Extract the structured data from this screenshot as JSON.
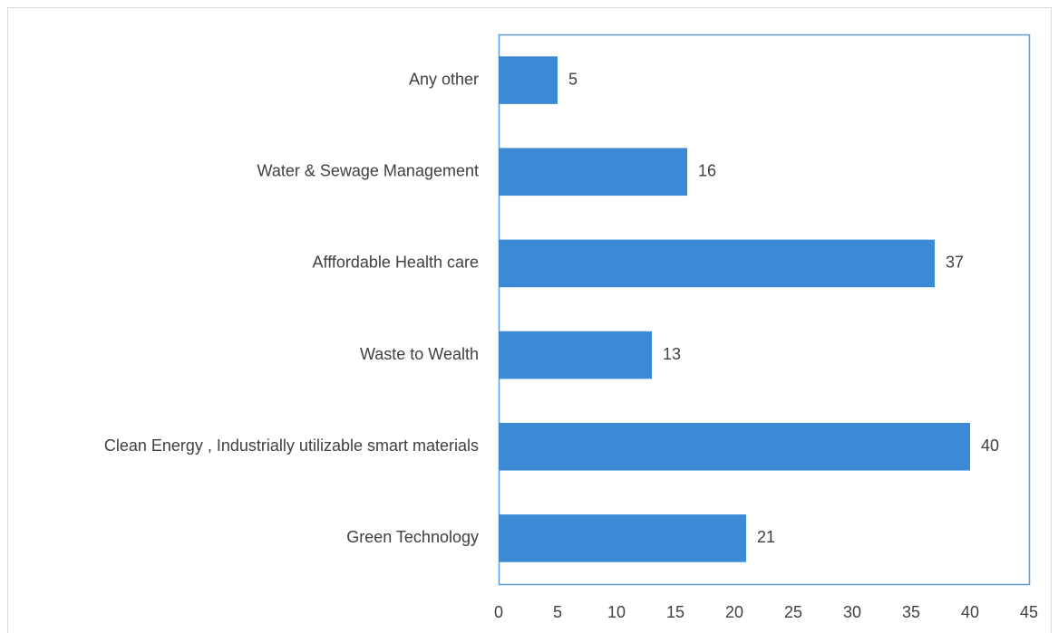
{
  "chart_data": {
    "type": "bar",
    "orientation": "horizontal",
    "categories": [
      "Any other",
      "Water & Sewage Management",
      "Afffordable Health care",
      "Waste to Wealth",
      "Clean Energy , Industrially utilizable smart materials",
      "Green Technology"
    ],
    "values": [
      5,
      16,
      37,
      13,
      40,
      21
    ],
    "color": "#3c8ad6",
    "xlim": [
      0,
      45
    ],
    "xticks": [
      0,
      5,
      10,
      15,
      20,
      25,
      30,
      35,
      40,
      45
    ],
    "grid": false
  }
}
